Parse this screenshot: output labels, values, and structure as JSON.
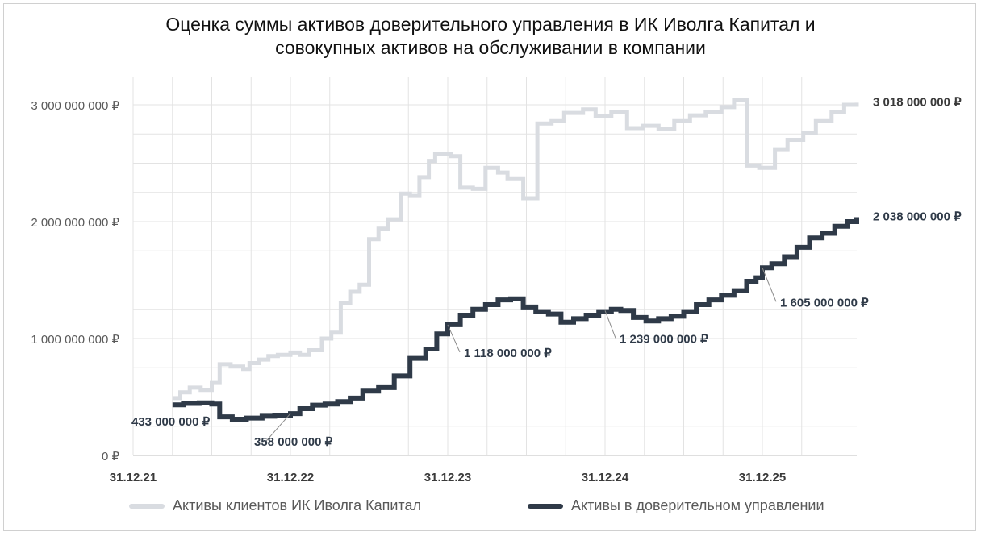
{
  "title_line1": "Оценка суммы активов доверительного управления в ИК Иволга Капитал и",
  "title_line2": "совокупных активов на обслуживании в компании",
  "colors": {
    "series_clients": "#d9dce1",
    "series_trust": "#2f3a48",
    "grid": "#e3e3e3",
    "axis_text": "#595959"
  },
  "chart_data": {
    "type": "line",
    "title": "Оценка суммы активов доверительного управления в ИК Иволга Капитал и совокупных активов на обслуживании в компании",
    "xlabel": "",
    "ylabel": "",
    "x_ticks": [
      "31.12.21",
      "31.12.22",
      "31.12.23",
      "31.12.24",
      "31.12.25"
    ],
    "y_ticks": [
      "0 ₽",
      "1 000 000 000 ₽",
      "2 000 000 000 ₽",
      "3 000 000 000 ₽"
    ],
    "x_unit": "years since 31.12.21",
    "xlim": [
      0,
      4.6
    ],
    "ylim": [
      0,
      3000000000
    ],
    "grid": true,
    "legend_position": "bottom",
    "series": [
      {
        "name": "Активы клиентов ИК Иволга Капитал",
        "color": "#d9dce1",
        "points": [
          [
            0.25,
            490000000
          ],
          [
            0.3,
            540000000
          ],
          [
            0.36,
            580000000
          ],
          [
            0.43,
            560000000
          ],
          [
            0.5,
            620000000
          ],
          [
            0.55,
            780000000
          ],
          [
            0.62,
            760000000
          ],
          [
            0.7,
            740000000
          ],
          [
            0.74,
            790000000
          ],
          [
            0.8,
            820000000
          ],
          [
            0.86,
            850000000
          ],
          [
            0.92,
            860000000
          ],
          [
            1.0,
            880000000
          ],
          [
            1.06,
            860000000
          ],
          [
            1.12,
            900000000
          ],
          [
            1.2,
            1000000000
          ],
          [
            1.26,
            1050000000
          ],
          [
            1.32,
            1300000000
          ],
          [
            1.38,
            1400000000
          ],
          [
            1.44,
            1460000000
          ],
          [
            1.5,
            1850000000
          ],
          [
            1.56,
            1940000000
          ],
          [
            1.62,
            2020000000
          ],
          [
            1.7,
            2240000000
          ],
          [
            1.76,
            2220000000
          ],
          [
            1.82,
            2380000000
          ],
          [
            1.88,
            2520000000
          ],
          [
            1.92,
            2580000000
          ],
          [
            2.02,
            2560000000
          ],
          [
            2.08,
            2290000000
          ],
          [
            2.16,
            2280000000
          ],
          [
            2.24,
            2460000000
          ],
          [
            2.32,
            2420000000
          ],
          [
            2.38,
            2370000000
          ],
          [
            2.48,
            2200000000
          ],
          [
            2.57,
            2840000000
          ],
          [
            2.66,
            2860000000
          ],
          [
            2.74,
            2930000000
          ],
          [
            2.86,
            2960000000
          ],
          [
            2.94,
            2900000000
          ],
          [
            3.04,
            2940000000
          ],
          [
            3.14,
            2800000000
          ],
          [
            3.24,
            2820000000
          ],
          [
            3.34,
            2790000000
          ],
          [
            3.44,
            2860000000
          ],
          [
            3.54,
            2910000000
          ],
          [
            3.64,
            2940000000
          ],
          [
            3.74,
            2980000000
          ],
          [
            3.82,
            3040000000
          ],
          [
            3.9,
            2480000000
          ],
          [
            3.98,
            2460000000
          ],
          [
            4.08,
            2620000000
          ],
          [
            4.16,
            2700000000
          ],
          [
            4.26,
            2760000000
          ],
          [
            4.34,
            2860000000
          ],
          [
            4.44,
            2940000000
          ],
          [
            4.52,
            3000000000
          ],
          [
            4.6,
            3018000000
          ]
        ]
      },
      {
        "name": "Активы в доверительном управлении",
        "color": "#2f3a48",
        "points": [
          [
            0.25,
            433000000
          ],
          [
            0.32,
            445000000
          ],
          [
            0.42,
            450000000
          ],
          [
            0.5,
            440000000
          ],
          [
            0.55,
            330000000
          ],
          [
            0.63,
            310000000
          ],
          [
            0.72,
            320000000
          ],
          [
            0.82,
            335000000
          ],
          [
            0.9,
            345000000
          ],
          [
            1.0,
            358000000
          ],
          [
            1.06,
            400000000
          ],
          [
            1.14,
            430000000
          ],
          [
            1.22,
            440000000
          ],
          [
            1.3,
            460000000
          ],
          [
            1.38,
            490000000
          ],
          [
            1.46,
            550000000
          ],
          [
            1.56,
            580000000
          ],
          [
            1.66,
            680000000
          ],
          [
            1.76,
            830000000
          ],
          [
            1.86,
            910000000
          ],
          [
            1.93,
            1040000000
          ],
          [
            2.0,
            1118000000
          ],
          [
            2.08,
            1200000000
          ],
          [
            2.16,
            1250000000
          ],
          [
            2.24,
            1290000000
          ],
          [
            2.32,
            1330000000
          ],
          [
            2.4,
            1340000000
          ],
          [
            2.48,
            1270000000
          ],
          [
            2.56,
            1230000000
          ],
          [
            2.64,
            1210000000
          ],
          [
            2.72,
            1140000000
          ],
          [
            2.8,
            1170000000
          ],
          [
            2.88,
            1200000000
          ],
          [
            2.96,
            1230000000
          ],
          [
            3.04,
            1250000000
          ],
          [
            3.1,
            1239000000
          ],
          [
            3.18,
            1180000000
          ],
          [
            3.26,
            1150000000
          ],
          [
            3.34,
            1170000000
          ],
          [
            3.42,
            1190000000
          ],
          [
            3.5,
            1230000000
          ],
          [
            3.58,
            1290000000
          ],
          [
            3.66,
            1330000000
          ],
          [
            3.74,
            1370000000
          ],
          [
            3.82,
            1410000000
          ],
          [
            3.9,
            1490000000
          ],
          [
            3.96,
            1520000000
          ],
          [
            4.0,
            1605000000
          ],
          [
            4.06,
            1640000000
          ],
          [
            4.14,
            1700000000
          ],
          [
            4.22,
            1780000000
          ],
          [
            4.3,
            1860000000
          ],
          [
            4.38,
            1900000000
          ],
          [
            4.46,
            1960000000
          ],
          [
            4.54,
            2000000000
          ],
          [
            4.6,
            2038000000
          ]
        ]
      }
    ],
    "annotations": [
      {
        "series": 1,
        "x": 0.25,
        "y": 433000000,
        "text": "433 000 000 ₽",
        "color": "#2f3a48"
      },
      {
        "series": 1,
        "x": 1.0,
        "y": 358000000,
        "text": "358 000 000 ₽",
        "color": "#2f3a48"
      },
      {
        "series": 1,
        "x": 2.0,
        "y": 1118000000,
        "text": "1 118 000 000 ₽",
        "color": "#2f3a48"
      },
      {
        "series": 1,
        "x": 3.0,
        "y": 1239000000,
        "text": "1 239 000 000 ₽",
        "color": "#2f3a48"
      },
      {
        "series": 1,
        "x": 4.0,
        "y": 1605000000,
        "text": "1 605 000 000 ₽",
        "color": "#2f3a48"
      },
      {
        "series": 1,
        "x": 4.6,
        "y": 2038000000,
        "text": "2 038 000 000 ₽",
        "color": "#2f3a48"
      },
      {
        "series": 0,
        "x": 4.6,
        "y": 3018000000,
        "text": "3 018 000 000 ₽",
        "color": "#3a3a3a"
      }
    ]
  }
}
